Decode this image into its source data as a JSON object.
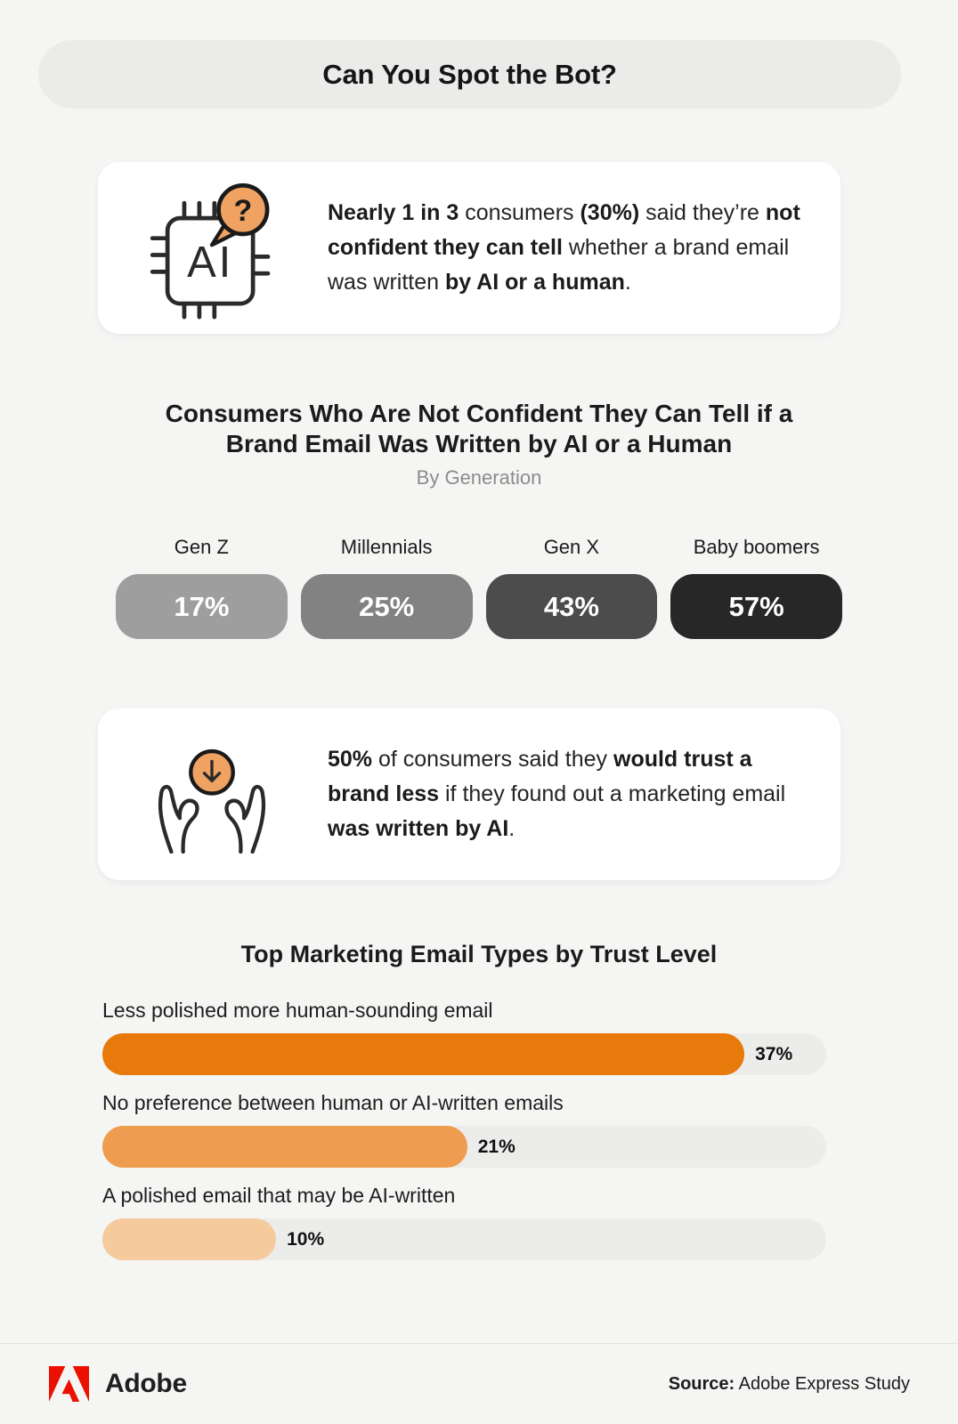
{
  "header": {
    "title": "Can You Spot the Bot?"
  },
  "stat_cards": [
    {
      "icon": "ai-chip-question-icon",
      "segments": [
        {
          "t": "Nearly 1 in 3 ",
          "b": true
        },
        {
          "t": "consumers ",
          "b": false
        },
        {
          "t": "(30%)",
          "b": true
        },
        {
          "t": " said they’re ",
          "b": false
        },
        {
          "t": "not confident they can tell ",
          "b": true
        },
        {
          "t": "whether a brand email was written ",
          "b": false
        },
        {
          "t": "by AI or a human",
          "b": true
        },
        {
          "t": ".",
          "b": false
        }
      ]
    },
    {
      "icon": "trust-decrease-hands-icon",
      "segments": [
        {
          "t": "50% ",
          "b": true
        },
        {
          "t": "of consumers said they ",
          "b": false
        },
        {
          "t": "would trust a brand less ",
          "b": true
        },
        {
          "t": "if they found out a marketing email ",
          "b": false
        },
        {
          "t": "was written by AI",
          "b": true
        },
        {
          "t": ".",
          "b": false
        }
      ]
    }
  ],
  "chart_data": [
    {
      "type": "bar",
      "title": "Consumers Who Are Not Confident They Can Tell if a\nBrand Email Was Written by AI or a Human",
      "subtitle": "By Generation",
      "categories": [
        "Gen Z",
        "Millennials",
        "Gen X",
        "Baby boomers"
      ],
      "values": [
        17,
        25,
        43,
        57
      ],
      "unit": "%",
      "colors": [
        "#9E9E9E",
        "#828282",
        "#4C4C4C",
        "#272727"
      ],
      "orientation": "category-pills",
      "legend": "none"
    },
    {
      "type": "bar",
      "title": "Top Marketing Email Types by Trust Level",
      "categories": [
        "Less polished more human-sounding email",
        "No preference between human or AI-written emails",
        "A polished email that may be AI-written"
      ],
      "values": [
        37,
        21,
        10
      ],
      "unit": "%",
      "colors": [
        "#E8790B",
        "#EE9D50",
        "#F5CB9E"
      ],
      "track_color": "#ECECEB",
      "orientation": "horizontal",
      "xlim_pct": [
        0,
        41.7
      ],
      "grid": false,
      "legend": "none"
    }
  ],
  "accent_colors": {
    "orange": "#F0A263",
    "outline": "#1A1A1A"
  },
  "footer": {
    "brand": "Adobe",
    "brand_color": "#EB1000",
    "source_label": "Source:",
    "source_text": " Adobe Express Study"
  }
}
